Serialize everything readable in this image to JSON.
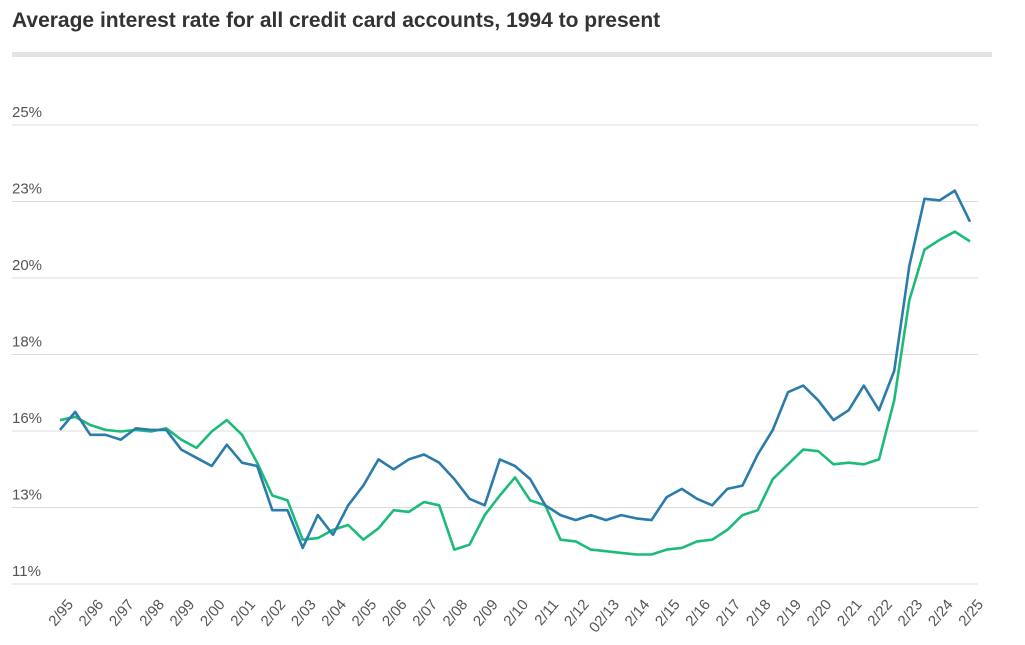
{
  "chart_data": {
    "type": "line",
    "title": "Average interest rate for all credit card accounts, 1994 to present",
    "categories": [
      "2/95",
      null,
      "2/96",
      null,
      "2/97",
      null,
      "2/98",
      null,
      "2/99",
      null,
      "2/00",
      null,
      "2/01",
      null,
      "2/02",
      null,
      "2/03",
      null,
      "2/04",
      null,
      "2/05",
      null,
      "2/06",
      null,
      "2/07",
      null,
      "2/08",
      null,
      "2/09",
      null,
      "2/10",
      null,
      "2/11",
      null,
      "2/12",
      null,
      "02/13",
      null,
      "2/14",
      null,
      "2/15",
      null,
      "2/16",
      null,
      "2/17",
      null,
      "2/18",
      null,
      "2/19",
      null,
      "2/20",
      null,
      "2/21",
      null,
      "2/22",
      null,
      "2/23",
      null,
      "2/24",
      null,
      "2/25"
    ],
    "series": [
      {
        "color": "#2b7bab",
        "values": [
          15.7,
          16.25,
          15.55,
          15.55,
          15.4,
          15.75,
          15.7,
          15.7,
          15.1,
          14.85,
          14.6,
          15.25,
          14.7,
          14.6,
          13.25,
          13.25,
          12.1,
          13.1,
          12.5,
          13.4,
          14.0,
          14.8,
          14.5,
          14.8,
          14.95,
          14.7,
          14.2,
          13.6,
          13.4,
          14.8,
          14.6,
          14.2,
          13.4,
          13.1,
          12.95,
          13.1,
          12.95,
          13.1,
          13.0,
          12.95,
          13.65,
          13.9,
          13.6,
          13.4,
          13.9,
          14.0,
          14.95,
          15.7,
          16.85,
          17.05,
          16.6,
          16.0,
          16.3,
          17.05,
          16.3,
          17.5,
          20.7,
          22.75,
          22.7,
          23.0,
          22.05
        ]
      },
      {
        "color": "#1dbb7a",
        "values": [
          16.0,
          16.1,
          15.85,
          15.7,
          15.65,
          15.7,
          15.65,
          15.75,
          15.4,
          15.15,
          15.65,
          16.0,
          15.55,
          14.7,
          13.7,
          13.55,
          12.35,
          12.4,
          12.65,
          12.8,
          12.35,
          12.7,
          13.25,
          13.2,
          13.5,
          13.4,
          12.05,
          12.2,
          13.1,
          13.7,
          14.25,
          13.55,
          13.4,
          12.35,
          12.3,
          12.05,
          12.0,
          11.95,
          11.9,
          11.9,
          12.05,
          12.1,
          12.3,
          12.35,
          12.65,
          13.1,
          13.25,
          14.2,
          14.65,
          15.1,
          15.05,
          14.65,
          14.7,
          14.65,
          14.8,
          16.6,
          19.65,
          21.2,
          21.5,
          21.75,
          21.45
        ]
      }
    ],
    "ylim": [
      11,
      25
    ],
    "yticks": [
      {
        "value": 11,
        "label": "11%"
      },
      {
        "value": 13.333,
        "label": "13%"
      },
      {
        "value": 15.667,
        "label": "16%"
      },
      {
        "value": 18,
        "label": "18%"
      },
      {
        "value": 20.333,
        "label": "20%"
      },
      {
        "value": 22.667,
        "label": "23%"
      },
      {
        "value": 25,
        "label": "25%"
      }
    ],
    "grid": true
  }
}
